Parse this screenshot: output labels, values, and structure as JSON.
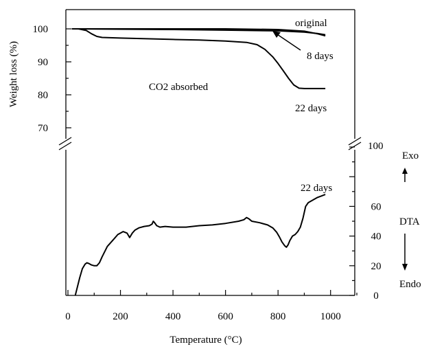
{
  "chart_data": [
    {
      "type": "line",
      "ylabel": "Weight loss (%)",
      "ylim": [
        70,
        100
      ],
      "xlim": [
        0,
        1100
      ],
      "y_ticks": [
        "70",
        "80",
        "90",
        "100"
      ],
      "series": [
        {
          "name": "original",
          "x": [
            15,
            200,
            400,
            600,
            800,
            900,
            950,
            980
          ],
          "y": [
            100,
            100,
            100,
            100,
            99.8,
            99.3,
            98.5,
            97.9
          ]
        },
        {
          "name": "8 days",
          "x": [
            15,
            200,
            400,
            600,
            800,
            900,
            950,
            980
          ],
          "y": [
            100,
            99.9,
            99.8,
            99.6,
            99.4,
            99.0,
            98.6,
            98.2
          ]
        },
        {
          "name": "22 days",
          "x": [
            15,
            40,
            70,
            90,
            110,
            130,
            200,
            300,
            400,
            500,
            600,
            680,
            720,
            750,
            780,
            800,
            820,
            840,
            860,
            880,
            900,
            940,
            980
          ],
          "y": [
            100,
            100,
            99.5,
            98.5,
            97.7,
            97.4,
            97.2,
            97.0,
            96.8,
            96.6,
            96.3,
            95.9,
            95.2,
            93.8,
            91.5,
            89.5,
            87.3,
            85.0,
            83.0,
            82.0,
            81.9,
            81.9,
            81.9
          ]
        }
      ],
      "annotations": [
        "original",
        "8 days",
        "22 days",
        "CO2 absorbed"
      ]
    },
    {
      "type": "line",
      "ylim": [
        0,
        100
      ],
      "y_ticks": [
        "0",
        "20",
        "40",
        "60",
        "100"
      ],
      "xlabel": "Temperature (°C)",
      "x_ticks": [
        "0",
        "200",
        "400",
        "600",
        "800",
        "1000"
      ],
      "series": [
        {
          "name": "22 days",
          "x": [
            28,
            35,
            45,
            55,
            65,
            72,
            80,
            90,
            100,
            110,
            120,
            130,
            150,
            170,
            190,
            210,
            225,
            235,
            245,
            255,
            270,
            290,
            310,
            320,
            325,
            330,
            338,
            350,
            370,
            400,
            450,
            500,
            550,
            600,
            650,
            670,
            680,
            690,
            700,
            730,
            760,
            780,
            795,
            805,
            815,
            825,
            832,
            838,
            845,
            855,
            865,
            875,
            885,
            895,
            905,
            915,
            930,
            950,
            965,
            980
          ],
          "y": [
            0,
            5,
            12,
            18,
            21,
            22,
            21.5,
            20.5,
            20,
            20,
            22,
            26,
            33,
            37,
            41,
            43,
            42,
            39,
            42,
            44,
            45.5,
            46.5,
            47,
            48,
            50,
            49,
            47,
            46,
            46.5,
            46,
            46,
            47,
            47.5,
            48.5,
            50,
            51,
            52.5,
            51.5,
            50,
            49,
            47.5,
            45.5,
            42.5,
            39.5,
            36,
            33.5,
            32.5,
            34,
            37,
            40,
            41,
            43,
            46,
            52,
            60,
            62.5,
            64,
            66,
            67,
            68
          ]
        }
      ],
      "annotations": [
        "22 days",
        "100",
        "Exo",
        "DTA",
        "Endo"
      ]
    }
  ]
}
